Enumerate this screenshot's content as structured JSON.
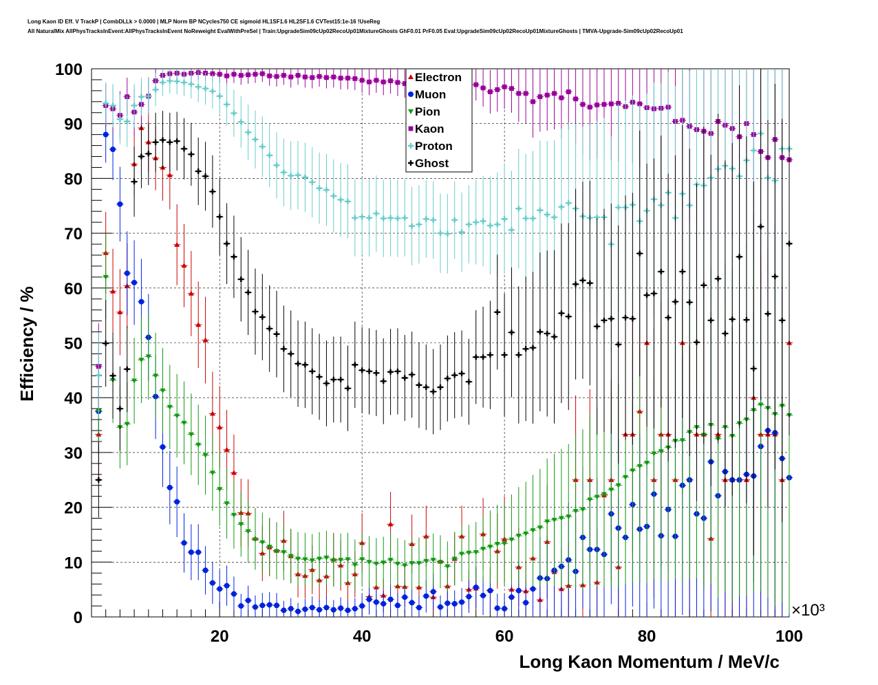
{
  "header": {
    "title_line1": "Long Kaon ID Eff. V TrackP | CombDLLk > 0.0000 | MLP Norm BP NCycles750 CE sigmoid HL1SF1.6 HL2SF1.6 CVTest15:1e-16 !UseReg",
    "title_line2": "All NaturalMix AllPhysTracksInEvent:AllPhysTracksInEvent NoReweight EvalWithPreSel | Train:UpgradeSim09cUp02RecoUp01MixtureGhosts GhF0.01 PrF0.05 Eval:UpgradeSim09cUp02RecoUp01MixtureGhosts | TMVA-Upgrade-Sim09cUp02RecoUp01"
  },
  "chart_data": {
    "type": "scatter",
    "xlabel": "Long Kaon Momentum / MeV/c",
    "ylabel": "Efficiency / %",
    "x_multiplier_label": "×10³",
    "xlim": [
      2,
      100
    ],
    "ylim": [
      0,
      100
    ],
    "x_ticks": [
      20,
      40,
      60,
      80,
      100
    ],
    "y_ticks": [
      0,
      10,
      20,
      30,
      40,
      50,
      60,
      70,
      80,
      90,
      100
    ],
    "grid": true,
    "legend_position": "top-center",
    "x": [
      3,
      4,
      5,
      6,
      7,
      8,
      9,
      10,
      11,
      12,
      13,
      14,
      15,
      16,
      17,
      18,
      19,
      20,
      21,
      22,
      23,
      24,
      25,
      26,
      27,
      28,
      29,
      30,
      31,
      32,
      33,
      34,
      35,
      36,
      37,
      38,
      39,
      40,
      41,
      42,
      43,
      44,
      45,
      46,
      47,
      48,
      49,
      50,
      51,
      52,
      53,
      54,
      55,
      56,
      57,
      58,
      59,
      60,
      61,
      62,
      63,
      64,
      65,
      66,
      67,
      68,
      69,
      70,
      71,
      72,
      73,
      74,
      75,
      76,
      77,
      78,
      79,
      80,
      81,
      82,
      83,
      84,
      85,
      86,
      87,
      88,
      89,
      90,
      91,
      92,
      93,
      94,
      95,
      96,
      97,
      98,
      99,
      100
    ],
    "series": [
      {
        "name": "Electron",
        "color": "#cc0000",
        "marker": "triangle-up",
        "values": [
          33.3,
          66.4,
          59.4,
          55.6,
          60.4,
          82.6,
          89.2,
          86.6,
          83.7,
          82.0,
          80.6,
          67.9,
          64.1,
          59.0,
          53.3,
          50.5,
          37.1,
          34.6,
          30.5,
          26.3,
          19.0,
          18.9,
          14.3,
          11.6,
          12.7,
          12.1,
          13.9,
          11.1,
          7.8,
          7.5,
          8.6,
          6.7,
          7.4,
          10.5,
          9.4,
          6.2,
          7.8,
          13.5,
          3.7,
          5.4,
          3.9,
          16.9,
          5.6,
          5.5,
          13.3,
          5.4,
          14.7,
          3.6,
          10.1,
          5.6,
          10.6,
          14.7,
          5.0,
          5.2,
          15.1,
          4.9,
          12.0,
          14.2,
          5.0,
          9.1,
          4.7,
          10.7,
          3.1,
          13.7,
          8.2,
          5.1,
          5.7,
          25.0,
          5.8,
          25.0,
          6.3,
          22.2,
          25.0,
          9.1,
          33.3,
          33.3,
          37.5,
          50.0,
          25.0,
          33.3,
          33.3,
          25.0,
          50.0,
          25.0,
          33.3,
          33.3,
          14.3,
          33.3,
          25.0,
          25.0,
          25.0,
          25.0,
          40.0,
          33.3,
          33.3,
          33.3,
          25.0,
          50.0
        ]
      },
      {
        "name": "Muon",
        "color": "#0022dd",
        "marker": "circle",
        "values": [
          37.5,
          88.0,
          85.3,
          75.3,
          62.7,
          61.0,
          57.5,
          51.0,
          40.2,
          31.0,
          23.6,
          21.0,
          13.5,
          11.8,
          11.8,
          8.5,
          6.2,
          5.1,
          5.7,
          4.2,
          2.0,
          3.0,
          1.8,
          2.1,
          2.2,
          2.1,
          1.2,
          1.5,
          1.0,
          1.4,
          1.7,
          1.3,
          1.7,
          1.3,
          1.6,
          1.2,
          1.5,
          2.0,
          3.2,
          2.7,
          2.4,
          3.2,
          2.1,
          3.6,
          2.6,
          1.7,
          3.8,
          4.6,
          1.8,
          2.5,
          2.4,
          2.7,
          3.7,
          5.4,
          3.9,
          4.8,
          1.6,
          1.5,
          3.6,
          4.8,
          2.6,
          5.1,
          7.1,
          7.0,
          8.5,
          9.2,
          10.4,
          8.3,
          14.5,
          12.3,
          12.3,
          11.4,
          18.8,
          16.2,
          14.5,
          20.5,
          16.0,
          16.5,
          22.4,
          14.8,
          19.6,
          14.7,
          24.0,
          25.0,
          18.8,
          18.0,
          28.3,
          22.1,
          26.5,
          25.0,
          25.0,
          26.0,
          25.7,
          31.1,
          34.0,
          33.6,
          28.9,
          25.4
        ]
      },
      {
        "name": "Pion",
        "color": "#119911",
        "marker": "triangle-down",
        "values": [
          37.6,
          62.0,
          43.2,
          34.6,
          35.2,
          43.1,
          46.9,
          47.5,
          44.0,
          41.3,
          38.3,
          36.7,
          35.4,
          33.3,
          31.4,
          29.5,
          26.3,
          23.3,
          20.7,
          18.6,
          16.9,
          15.6,
          14.1,
          13.6,
          12.8,
          12.0,
          11.8,
          11.1,
          10.6,
          10.5,
          10.3,
          10.6,
          10.8,
          10.3,
          10.4,
          10.5,
          9.5,
          10.5,
          10.0,
          9.7,
          9.9,
          10.4,
          9.7,
          9.4,
          9.8,
          9.8,
          10.2,
          10.4,
          10.0,
          9.2,
          10.6,
          11.5,
          11.7,
          11.8,
          12.4,
          12.8,
          13.3,
          13.4,
          14.1,
          14.8,
          15.2,
          15.8,
          16.3,
          17.4,
          17.7,
          18.0,
          18.3,
          19.3,
          19.6,
          21.4,
          21.9,
          22.4,
          23.2,
          24.0,
          25.5,
          26.7,
          27.5,
          28.1,
          29.8,
          30.2,
          30.9,
          32.1,
          32.2,
          33.7,
          34.6,
          33.2,
          35.0,
          32.5,
          34.6,
          33.0,
          35.3,
          36.0,
          37.7,
          38.7,
          38.1,
          37.0,
          38.5,
          36.8
        ]
      },
      {
        "name": "Kaon",
        "color": "#990099",
        "marker": "square",
        "values": [
          45.7,
          93.3,
          92.7,
          91.5,
          94.9,
          92.1,
          93.5,
          95.0,
          97.8,
          98.8,
          99.1,
          99.2,
          99.0,
          99.2,
          99.3,
          99.2,
          99.1,
          99.0,
          98.7,
          99.0,
          98.8,
          98.9,
          99.0,
          99.1,
          98.7,
          98.6,
          98.8,
          98.5,
          98.8,
          98.5,
          98.4,
          98.6,
          98.4,
          98.5,
          98.3,
          98.3,
          98.2,
          97.9,
          97.6,
          97.9,
          97.6,
          97.8,
          97.5,
          97.3,
          97.5,
          97.9,
          97.5,
          96.6,
          97.4,
          96.7,
          96.5,
          96.1,
          95.5,
          97.1,
          96.5,
          95.8,
          96.2,
          96.7,
          96.4,
          95.5,
          95.5,
          94.0,
          94.9,
          95.2,
          95.5,
          94.7,
          95.8,
          94.5,
          93.5,
          93.0,
          93.4,
          93.5,
          93.6,
          93.7,
          93.1,
          93.9,
          93.6,
          92.9,
          92.7,
          92.8,
          93.0,
          90.4,
          90.6,
          89.5,
          88.9,
          88.6,
          88.2,
          90.4,
          89.7,
          89.1,
          87.6,
          90.0,
          88.0,
          84.9,
          83.8,
          87.1,
          83.8,
          83.4
        ]
      },
      {
        "name": "Proton",
        "color": "#66cccc",
        "marker": "cross",
        "values": [
          44.1,
          93.7,
          93.3,
          90.8,
          90.4,
          93.3,
          94.9,
          95.0,
          96.2,
          97.5,
          97.8,
          97.7,
          97.5,
          97.2,
          96.7,
          96.4,
          95.9,
          95.0,
          93.5,
          91.9,
          90.3,
          88.4,
          87.1,
          85.8,
          84.2,
          82.4,
          81.1,
          80.5,
          80.6,
          80.2,
          79.3,
          78.2,
          77.9,
          76.8,
          76.1,
          75.8,
          72.8,
          73.0,
          72.8,
          73.6,
          72.7,
          72.8,
          72.7,
          72.8,
          71.3,
          71.6,
          72.6,
          72.4,
          70.0,
          69.9,
          72.4,
          70.2,
          71.6,
          72.0,
          72.2,
          71.4,
          71.6,
          72.6,
          70.6,
          74.5,
          72.7,
          72.7,
          74.2,
          73.4,
          72.9,
          74.8,
          75.5,
          74.5,
          73.1,
          72.8,
          72.9,
          72.9,
          68.0,
          74.7,
          74.7,
          75.2,
          72.2,
          74.1,
          76.2,
          75.1,
          77.4,
          72.8,
          77.2,
          75.1,
          78.9,
          78.7,
          80.1,
          81.7,
          82.3,
          81.8,
          80.4,
          83.3,
          85.1,
          88.2,
          80.1,
          79.6,
          85.4,
          85.4
        ]
      },
      {
        "name": "Ghost",
        "color": "#000000",
        "marker": "cross",
        "values": [
          25.0,
          49.9,
          44.0,
          38.0,
          45.2,
          79.4,
          84.0,
          84.5,
          86.6,
          87.0,
          86.6,
          86.8,
          85.4,
          84.4,
          81.3,
          80.4,
          77.6,
          73.0,
          68.1,
          65.7,
          61.6,
          59.2,
          55.7,
          54.7,
          52.6,
          51.6,
          48.9,
          48.0,
          46.2,
          46.0,
          44.8,
          43.8,
          42.6,
          43.3,
          43.3,
          41.7,
          46.0,
          45.0,
          44.8,
          44.5,
          43.0,
          44.7,
          44.8,
          43.6,
          44.2,
          42.3,
          41.9,
          41.1,
          41.9,
          43.5,
          44.1,
          44.4,
          42.9,
          47.4,
          47.4,
          47.8,
          55.6,
          47.8,
          51.9,
          47.8,
          48.9,
          49.1,
          52.0,
          51.7,
          51.1,
          55.4,
          54.8,
          60.7,
          61.4,
          60.9,
          53.0,
          54.1,
          54.4,
          49.7,
          54.6,
          54.4,
          66.3,
          58.7,
          59.0,
          63.0,
          54.6,
          57.5,
          63.0,
          57.4,
          50.1,
          60.5,
          54.1,
          61.7,
          51.7,
          54.3,
          65.7,
          54.2,
          45.3,
          71.2,
          55.3,
          62.1,
          54.1,
          68.1
        ]
      }
    ]
  }
}
